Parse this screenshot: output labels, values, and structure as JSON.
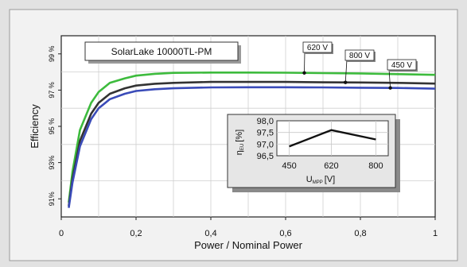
{
  "chart_data": {
    "type": "line",
    "title": "SolarLake 10000TL-PM",
    "xlabel": "Power / Nominal Power",
    "ylabel": "Efficiency",
    "xlim": [
      0,
      1
    ],
    "ylim": [
      90,
      100
    ],
    "x_ticks": [
      "0",
      "0,2",
      "0,4",
      "0,6",
      "0,8",
      "1"
    ],
    "y_ticks": [
      "91%",
      "93%",
      "95 %",
      "97 %",
      "99 %"
    ],
    "grid": true,
    "colors": {
      "green": "#3dbb3d",
      "dark": "#333333",
      "blue": "#3a4bb8"
    },
    "series": [
      {
        "name": "620 V",
        "color": "#3dbb3d",
        "x": [
          0.02,
          0.03,
          0.05,
          0.08,
          0.1,
          0.13,
          0.17,
          0.2,
          0.25,
          0.3,
          0.4,
          0.5,
          0.6,
          0.7,
          0.8,
          0.9,
          1.0
        ],
        "y": [
          90.8,
          92.5,
          94.8,
          96.3,
          96.9,
          97.4,
          97.65,
          97.8,
          97.9,
          97.95,
          97.97,
          97.97,
          97.96,
          97.94,
          97.92,
          97.88,
          97.84
        ]
      },
      {
        "name": "800 V",
        "color": "#333333",
        "x": [
          0.02,
          0.03,
          0.05,
          0.08,
          0.1,
          0.13,
          0.17,
          0.2,
          0.25,
          0.3,
          0.4,
          0.5,
          0.6,
          0.7,
          0.8,
          0.9,
          1.0
        ],
        "y": [
          90.6,
          92.1,
          94.2,
          95.7,
          96.3,
          96.8,
          97.1,
          97.25,
          97.35,
          97.4,
          97.45,
          97.45,
          97.45,
          97.43,
          97.42,
          97.4,
          97.36
        ]
      },
      {
        "name": "450 V",
        "color": "#3a4bb8",
        "x": [
          0.02,
          0.03,
          0.05,
          0.08,
          0.1,
          0.13,
          0.17,
          0.2,
          0.25,
          0.3,
          0.4,
          0.5,
          0.6,
          0.7,
          0.8,
          0.9,
          1.0
        ],
        "y": [
          90.5,
          91.9,
          93.9,
          95.4,
          96.0,
          96.5,
          96.8,
          96.95,
          97.05,
          97.1,
          97.15,
          97.16,
          97.16,
          97.15,
          97.13,
          97.12,
          97.08
        ]
      }
    ],
    "inset": {
      "type": "line",
      "xlabel": "U",
      "xlabel_sub": "MPP",
      "xlabel_unit": "[V]",
      "ylabel": "η",
      "ylabel_sub": "EU",
      "ylabel_unit": "[%]",
      "x_ticks": [
        "450",
        "620",
        "800"
      ],
      "y_ticks": [
        "96,5",
        "97,0",
        "97,5",
        "98,0"
      ],
      "xlim": [
        400,
        850
      ],
      "ylim": [
        96.5,
        98.0
      ],
      "x": [
        450,
        620,
        800
      ],
      "y": [
        96.9,
        97.6,
        97.2
      ]
    }
  }
}
